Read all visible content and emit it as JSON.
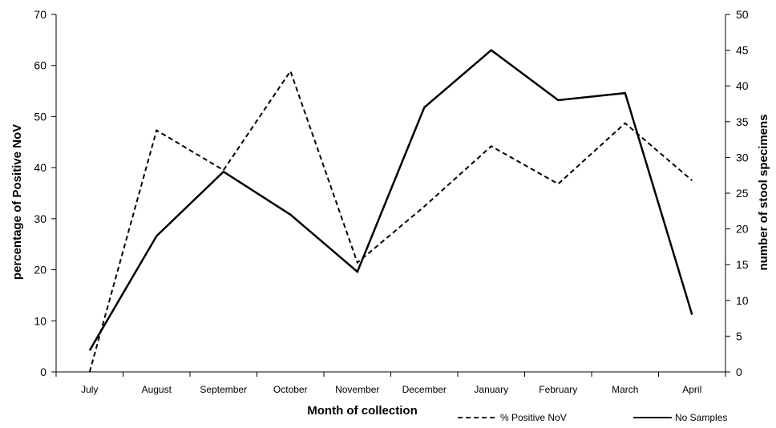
{
  "chart_data": {
    "type": "line",
    "title": "",
    "xlabel": "Month of collection",
    "ylabel_left": "percentage of Positive NoV",
    "ylabel_right": "number of stool specimens",
    "categories": [
      "July",
      "August",
      "September",
      "October",
      "November",
      "December",
      "January",
      "February",
      "March",
      "April"
    ],
    "ylim_left": [
      0,
      70
    ],
    "yticks_left": [
      "0",
      "10",
      "20",
      "30",
      "40",
      "50",
      "60",
      "70"
    ],
    "ylim_right": [
      0,
      50
    ],
    "yticks_right": [
      "0",
      "5",
      "10",
      "15",
      "20",
      "25",
      "30",
      "35",
      "40",
      "45",
      "50"
    ],
    "grid": false,
    "legend_position": "bottom-right",
    "series": [
      {
        "name": "% Positive NoV",
        "axis": "left",
        "style": "dashed",
        "color": "#000000",
        "values": [
          0,
          47.3,
          39.5,
          58.9,
          21.4,
          32.4,
          44.2,
          36.8,
          48.7,
          37.5
        ]
      },
      {
        "name": "No Samples",
        "axis": "right",
        "style": "solid",
        "color": "#000000",
        "values": [
          3,
          19,
          28,
          22,
          14,
          37,
          45,
          38,
          39,
          8
        ]
      }
    ]
  }
}
